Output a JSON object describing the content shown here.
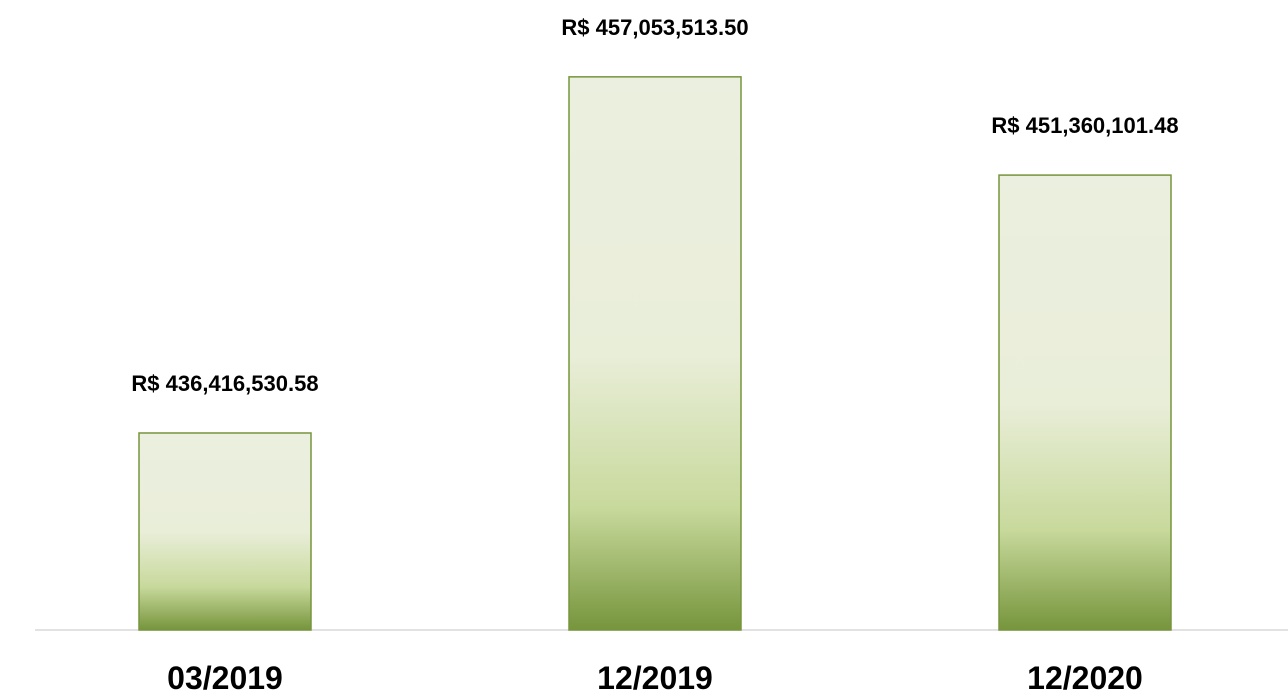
{
  "chart_data": {
    "type": "bar",
    "categories": [
      "03/2019",
      "12/2019",
      "12/2020"
    ],
    "values": [
      436416530.58,
      457053513.5,
      451360101.48
    ],
    "value_labels": [
      "R$ 436,416,530.58",
      "R$ 457,053,513.50",
      "R$ 451,360,101.48"
    ],
    "color": "#76953c",
    "ylim": [
      425000000,
      460000000
    ],
    "grid": false
  }
}
